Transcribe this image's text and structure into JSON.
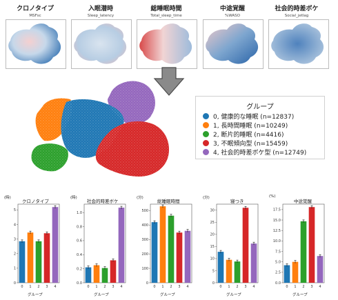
{
  "umap_panels": [
    {
      "title": "クロノタイプ",
      "subtitle": "MSFsc"
    },
    {
      "title": "入眠潜時",
      "subtitle": "Sleep_latency"
    },
    {
      "title": "総睡眠時間",
      "subtitle": "Total_sleep_time"
    },
    {
      "title": "中途覚醒",
      "subtitle": "%WASO"
    },
    {
      "title": "社会的時差ボケ",
      "subtitle": "Social_jetlag"
    }
  ],
  "legend": {
    "title": "グループ",
    "items": [
      {
        "label": "0, 健康的な睡眠 (n=12837)",
        "color": "#1f77b4"
      },
      {
        "label": "1, 長時間睡眠 (n=10249)",
        "color": "#ff7f0e"
      },
      {
        "label": "2, 断片的睡眠 (n=4416)",
        "color": "#2ca02c"
      },
      {
        "label": "3, 不眠傾向型 (n=15459)",
        "color": "#d62728"
      },
      {
        "label": "4, 社会的時差ボケ型 (n=12749)",
        "color": "#9467bd"
      }
    ]
  },
  "colors": [
    "#1f77b4",
    "#ff7f0e",
    "#2ca02c",
    "#d62728",
    "#9467bd"
  ],
  "chart_data": [
    {
      "type": "bar",
      "title": "クロノタイプ",
      "unit": "(時)",
      "xlabel": "グループ",
      "categories": [
        "0",
        "1",
        "2",
        "3",
        "4"
      ],
      "values": [
        2.85,
        3.45,
        2.85,
        3.4,
        5.2
      ],
      "ylim": [
        0,
        5.4
      ],
      "yticks": [
        "0",
        "1",
        "2",
        "3",
        "4",
        "5"
      ]
    },
    {
      "type": "bar",
      "title": "社会的時差ボケ",
      "unit": "(時)",
      "xlabel": "グループ",
      "categories": [
        "0",
        "1",
        "2",
        "3",
        "4"
      ],
      "values": [
        0.22,
        0.25,
        0.21,
        0.32,
        1.07
      ],
      "ylim": [
        0,
        1.12
      ],
      "yticks": [
        "0.0",
        "0.2",
        "0.4",
        "0.6",
        "0.8",
        "1.0"
      ]
    },
    {
      "type": "bar",
      "title": "総睡眠時間",
      "unit": "(分)",
      "xlabel": "グループ",
      "categories": [
        "0",
        "1",
        "2",
        "3",
        "4"
      ],
      "values": [
        420,
        530,
        465,
        348,
        360
      ],
      "ylim": [
        0,
        545
      ],
      "yticks": [
        "0",
        "100",
        "200",
        "300",
        "400",
        "500"
      ]
    },
    {
      "type": "bar",
      "title": "寝つき",
      "unit": "(分)",
      "xlabel": "グループ",
      "categories": [
        "0",
        "1",
        "2",
        "3",
        "4"
      ],
      "values": [
        12.8,
        9.5,
        8.8,
        31.0,
        16.2
      ],
      "ylim": [
        0,
        32.5
      ],
      "yticks": [
        "0",
        "5",
        "10",
        "15",
        "20",
        "25",
        "30"
      ]
    },
    {
      "type": "bar",
      "title": "中途覚醒",
      "unit": "(%)",
      "xlabel": "グループ",
      "categories": [
        "0",
        "1",
        "2",
        "3",
        "4"
      ],
      "values": [
        4.2,
        5.0,
        14.7,
        18.1,
        6.4
      ],
      "ylim": [
        0,
        18.8
      ],
      "yticks": [
        "0.0",
        "2.5",
        "5.0",
        "7.5",
        "10.0",
        "12.5",
        "15.0",
        "17.5"
      ]
    }
  ]
}
